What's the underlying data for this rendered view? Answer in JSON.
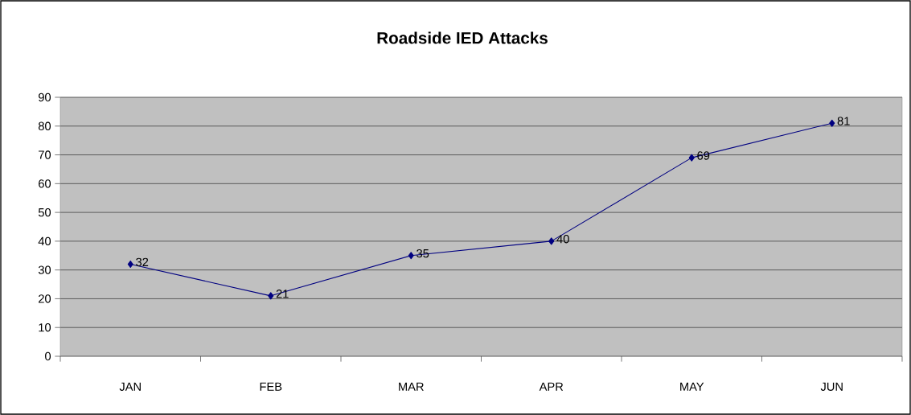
{
  "chart_data": {
    "type": "line",
    "title": "Roadside IED Attacks",
    "categories": [
      "JAN",
      "FEB",
      "MAR",
      "APR",
      "MAY",
      "JUN"
    ],
    "values": [
      32,
      21,
      35,
      40,
      69,
      81
    ],
    "color": "#000080",
    "ylim": [
      0,
      90
    ],
    "yticks": [
      0,
      10,
      20,
      30,
      40,
      50,
      60,
      70,
      80,
      90
    ],
    "grid": "y",
    "marker": "diamond",
    "line_style": "solid",
    "data_labels": true
  }
}
